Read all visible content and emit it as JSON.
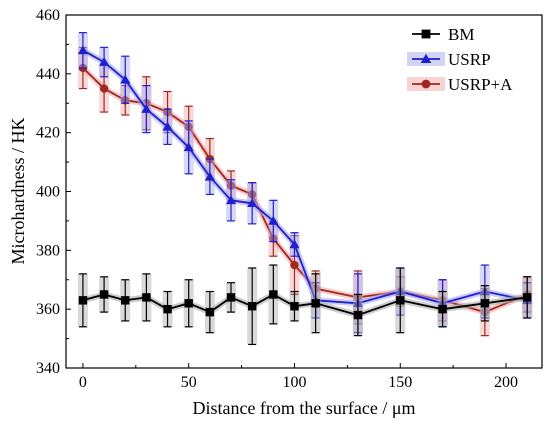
{
  "chart_data": {
    "type": "line",
    "title": "",
    "xlabel": "Distance from the surface / μm",
    "ylabel": "Microhardness / HK",
    "xlim": [
      -8,
      217
    ],
    "ylim": [
      340,
      460
    ],
    "xticks": [
      0,
      50,
      100,
      150,
      200
    ],
    "yticks": [
      340,
      360,
      380,
      400,
      420,
      440,
      460
    ],
    "grid": false,
    "legend_position": "top-right",
    "series": [
      {
        "name": "BM",
        "marker": "square",
        "color": "#000000",
        "shade": "#aaaaaa",
        "x": [
          0,
          10,
          20,
          30,
          40,
          50,
          60,
          70,
          80,
          90,
          100,
          110,
          130,
          150,
          170,
          190,
          210
        ],
        "y": [
          363,
          365,
          363,
          364,
          360,
          362,
          359,
          364,
          361,
          365,
          361,
          362,
          358,
          363,
          360,
          362,
          364
        ],
        "err": [
          9,
          6,
          7,
          8,
          6,
          8,
          7,
          5,
          13,
          10,
          5,
          10,
          7,
          11,
          6,
          6,
          7
        ]
      },
      {
        "name": "USRP",
        "marker": "triangle",
        "color": "#1f1fd0",
        "shade": "#a8a8ee",
        "x": [
          0,
          10,
          20,
          30,
          40,
          50,
          60,
          70,
          80,
          90,
          100,
          110,
          130,
          150,
          170,
          190,
          210
        ],
        "y": [
          448,
          444,
          438,
          428,
          422,
          415,
          405,
          397,
          396,
          390,
          382,
          363,
          362,
          366,
          362,
          366,
          363
        ],
        "err": [
          6,
          5,
          8,
          8,
          6,
          9,
          6,
          7,
          7,
          7,
          4,
          6,
          10,
          8,
          8,
          9,
          6
        ]
      },
      {
        "name": "USRP+A",
        "marker": "circle",
        "color": "#a0281e",
        "shade": "#f0a8a8",
        "x": [
          0,
          10,
          20,
          30,
          40,
          50,
          60,
          70,
          80,
          90,
          100,
          110,
          130,
          150,
          170,
          190,
          210
        ],
        "y": [
          442,
          435,
          431,
          430,
          427,
          422,
          411,
          402,
          399,
          384,
          375,
          367,
          364,
          366,
          363,
          359,
          365
        ],
        "err": [
          7,
          8,
          5,
          9,
          7,
          7,
          7,
          5,
          4,
          6,
          10,
          6,
          9,
          5,
          7,
          8,
          6
        ]
      }
    ]
  }
}
